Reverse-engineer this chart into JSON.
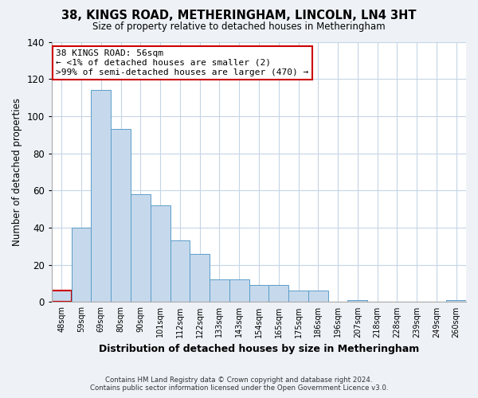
{
  "title": "38, KINGS ROAD, METHERINGHAM, LINCOLN, LN4 3HT",
  "subtitle": "Size of property relative to detached houses in Metheringham",
  "xlabel": "Distribution of detached houses by size in Metheringham",
  "ylabel": "Number of detached properties",
  "bar_labels": [
    "48sqm",
    "59sqm",
    "69sqm",
    "80sqm",
    "90sqm",
    "101sqm",
    "112sqm",
    "122sqm",
    "133sqm",
    "143sqm",
    "154sqm",
    "165sqm",
    "175sqm",
    "186sqm",
    "196sqm",
    "207sqm",
    "218sqm",
    "228sqm",
    "239sqm",
    "249sqm",
    "260sqm"
  ],
  "bar_values": [
    6,
    40,
    114,
    93,
    58,
    52,
    33,
    26,
    12,
    12,
    9,
    9,
    6,
    6,
    0,
    1,
    0,
    0,
    0,
    0,
    1
  ],
  "bar_color": "#c6d9ec",
  "bar_edge_color": "#5a9dc8",
  "highlight_bar_index": 0,
  "highlight_bar_edge_color": "#cc0000",
  "ylim": [
    0,
    140
  ],
  "yticks": [
    0,
    20,
    40,
    60,
    80,
    100,
    120,
    140
  ],
  "annotation_title": "38 KINGS ROAD: 56sqm",
  "annotation_line1": "← <1% of detached houses are smaller (2)",
  "annotation_line2": ">99% of semi-detached houses are larger (470) →",
  "annotation_box_edge_color": "#cc0000",
  "footer_line1": "Contains HM Land Registry data © Crown copyright and database right 2024.",
  "footer_line2": "Contains public sector information licensed under the Open Government Licence v3.0.",
  "background_color": "#eef2f7",
  "plot_background_color": "#ffffff",
  "grid_color": "#c5d5e5"
}
